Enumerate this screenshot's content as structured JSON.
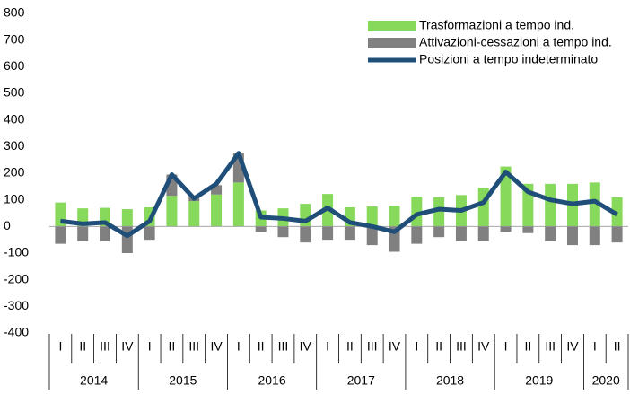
{
  "chart_data": {
    "type": "stacked-bar-line",
    "categories": [
      "I",
      "II",
      "III",
      "IV",
      "I",
      "II",
      "III",
      "IV",
      "I",
      "II",
      "III",
      "IV",
      "I",
      "II",
      "III",
      "IV",
      "I",
      "II",
      "III",
      "IV",
      "I",
      "II",
      "III",
      "IV",
      "I",
      "II"
    ],
    "years": [
      "2014",
      "2015",
      "2016",
      "2017",
      "2018",
      "2019",
      "2020"
    ],
    "series": [
      {
        "name": "Trasformazioni a tempo ind.",
        "color": "#86d95a",
        "kind": "bar",
        "values": [
          90,
          68,
          70,
          65,
          72,
          115,
          95,
          120,
          165,
          60,
          68,
          85,
          122,
          72,
          75,
          78,
          112,
          110,
          118,
          145,
          225,
          160,
          160,
          160,
          165,
          110
        ]
      },
      {
        "name": "Attivazioni-cessazioni a tempo ind.",
        "color": "#808080",
        "kind": "bar",
        "values": [
          -65,
          -55,
          -55,
          -100,
          -50,
          80,
          15,
          35,
          110,
          -20,
          -40,
          -60,
          -50,
          -50,
          -70,
          -95,
          -65,
          -40,
          -55,
          -55,
          -20,
          -25,
          -55,
          -70,
          -70,
          -60
        ]
      },
      {
        "name": "Posizioni a tempo indeterminato",
        "color": "#1f4e79",
        "kind": "line",
        "values": [
          20,
          10,
          15,
          -35,
          20,
          195,
          105,
          160,
          275,
          35,
          30,
          20,
          70,
          15,
          0,
          -20,
          45,
          65,
          60,
          90,
          205,
          130,
          100,
          85,
          95,
          45
        ]
      }
    ],
    "ylim": [
      -400,
      800
    ],
    "yticks": [
      -400,
      -300,
      -200,
      -100,
      0,
      100,
      200,
      300,
      400,
      500,
      600,
      700,
      800
    ]
  }
}
